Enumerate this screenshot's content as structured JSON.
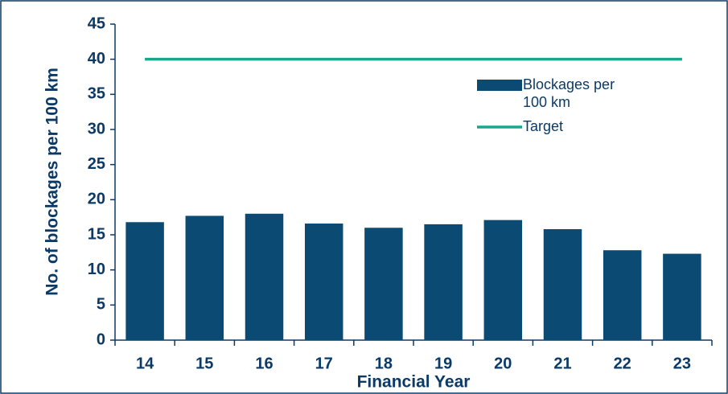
{
  "chart_data": {
    "type": "bar",
    "xlabel": "Financial Year",
    "ylabel": "No. of blockages per 100 km",
    "categories": [
      "14",
      "15",
      "16",
      "17",
      "18",
      "19",
      "20",
      "21",
      "22",
      "23"
    ],
    "series": [
      {
        "name": "Blockages per 100 km",
        "type": "bar",
        "color": "#0b4a73",
        "values": [
          16.8,
          17.7,
          18.0,
          16.6,
          16.0,
          16.5,
          17.1,
          15.8,
          12.8,
          12.3
        ]
      },
      {
        "name": "Target",
        "type": "line",
        "color": "#1aa58d",
        "values": [
          40,
          40,
          40,
          40,
          40,
          40,
          40,
          40,
          40,
          40
        ]
      }
    ],
    "ylim": [
      0,
      45
    ],
    "yticks": [
      0,
      5,
      10,
      15,
      20,
      25,
      30,
      35,
      40,
      45
    ],
    "grid": false
  }
}
